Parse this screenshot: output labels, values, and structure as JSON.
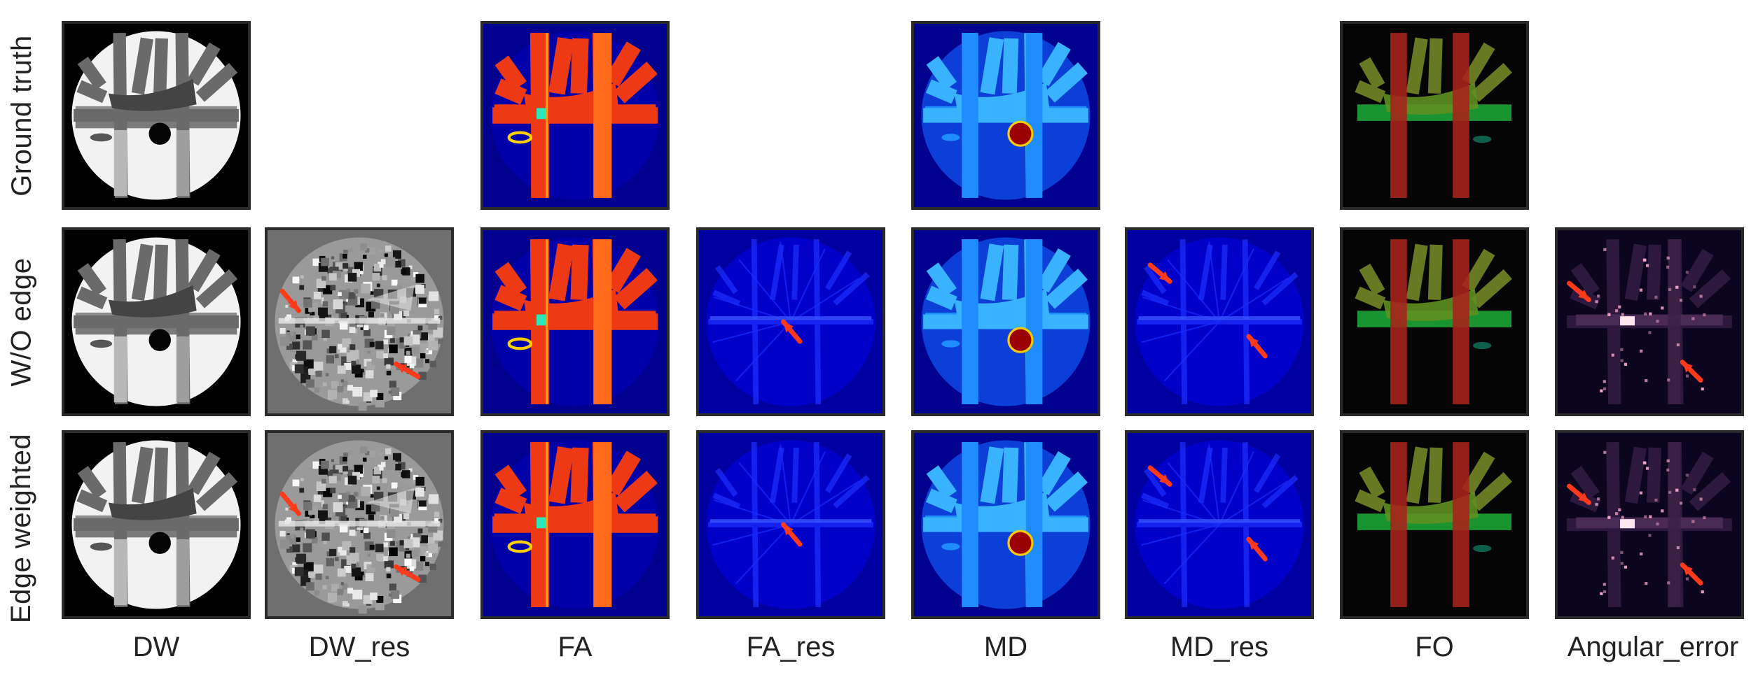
{
  "row_labels": [
    "Ground truth",
    "W/O edge",
    "Edge weighted"
  ],
  "column_labels": [
    "DW",
    "DW_res",
    "FA",
    "FA_res",
    "MD",
    "MD_res",
    "FO",
    "Angular_error"
  ],
  "panels": [
    {
      "row": 0,
      "col": 0,
      "map": "DW-gray-phantom-icon"
    },
    {
      "row": 0,
      "col": 2,
      "map": "FA-jet-phantom-icon"
    },
    {
      "row": 0,
      "col": 4,
      "map": "MD-jet-phantom-icon"
    },
    {
      "row": 0,
      "col": 6,
      "map": "FO-rgb-phantom-icon"
    },
    {
      "row": 1,
      "col": 0,
      "map": "DW-gray-phantom-icon"
    },
    {
      "row": 1,
      "col": 1,
      "map": "residual-noise-icon",
      "arrows": 2
    },
    {
      "row": 1,
      "col": 2,
      "map": "FA-jet-phantom-icon"
    },
    {
      "row": 1,
      "col": 3,
      "map": "residual-blue-icon",
      "arrows": 1
    },
    {
      "row": 1,
      "col": 4,
      "map": "MD-jet-phantom-icon"
    },
    {
      "row": 1,
      "col": 5,
      "map": "residual-blue-icon",
      "arrows": 2
    },
    {
      "row": 1,
      "col": 6,
      "map": "FO-rgb-phantom-icon"
    },
    {
      "row": 1,
      "col": 7,
      "map": "angular-error-magma-icon",
      "arrows": 2
    },
    {
      "row": 2,
      "col": 0,
      "map": "DW-gray-phantom-icon"
    },
    {
      "row": 2,
      "col": 1,
      "map": "residual-noise-icon",
      "arrows": 2
    },
    {
      "row": 2,
      "col": 2,
      "map": "FA-jet-phantom-icon"
    },
    {
      "row": 2,
      "col": 3,
      "map": "residual-blue-icon",
      "arrows": 1
    },
    {
      "row": 2,
      "col": 4,
      "map": "MD-jet-phantom-icon"
    },
    {
      "row": 2,
      "col": 5,
      "map": "residual-blue-icon",
      "arrows": 2
    },
    {
      "row": 2,
      "col": 6,
      "map": "FO-rgb-phantom-icon"
    },
    {
      "row": 2,
      "col": 7,
      "map": "angular-error-magma-icon",
      "arrows": 2
    }
  ],
  "colors": {
    "arrow": "#ff3a1a",
    "jet_background": "#00008f",
    "fo_background": "#050505",
    "magma_background": "#0b0520"
  }
}
